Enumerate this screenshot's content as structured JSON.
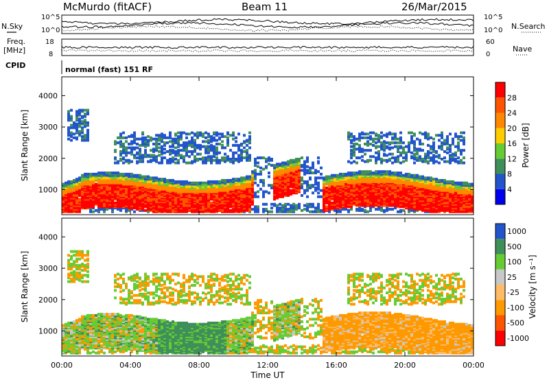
{
  "header": {
    "station": "McMurdo (fitACF)",
    "beam": "Beam 11",
    "date": "26/Mar/2015"
  },
  "top_panels": {
    "nsky_label": "N.Sky",
    "nsearch_label": "N.Search",
    "left_ticks": [
      "10^5",
      "10^0"
    ],
    "right_ticks": [
      "10^5",
      "10^0"
    ],
    "freq_label": "Freq.",
    "freq_unit": "[MHz]",
    "freq_ticks": [
      "18",
      "8"
    ],
    "nave_label": "Nave",
    "nave_ticks": [
      "60",
      "0"
    ],
    "cpid_label": "CPID",
    "cpid_text": "normal (fast) 151 RF"
  },
  "colors": {
    "power": [
      "#0000ee",
      "#2255cc",
      "#3f8f5a",
      "#66cc33",
      "#ffcc00",
      "#ff8800",
      "#ff5500",
      "#ff0000"
    ],
    "velocity": [
      "#ff0000",
      "#ff5500",
      "#ff9900",
      "#ffbb66",
      "#c8c8c8",
      "#66cc33",
      "#3f8f5a",
      "#2255cc"
    ]
  },
  "chart_data": [
    {
      "type": "heatmap",
      "name": "power_panel",
      "ylabel": "Slant Range [km]",
      "xlabel": "Time UT",
      "yticks": [
        "1000",
        "2000",
        "3000",
        "4000"
      ],
      "xticks": [
        "00:00",
        "04:00",
        "08:00",
        "12:00",
        "16:00",
        "20:00",
        "00:00"
      ],
      "colorbar": {
        "label": "Power [dB]",
        "ticks": [
          "4",
          "8",
          "12",
          "16",
          "20",
          "24",
          "28"
        ],
        "levels": [
          0,
          4,
          8,
          12,
          16,
          20,
          24,
          28,
          32
        ]
      },
      "ylim": [
        200,
        4600
      ],
      "xlim": [
        0,
        24
      ]
    },
    {
      "type": "heatmap",
      "name": "velocity_panel",
      "ylabel": "Slant Range [km]",
      "xlabel": "Time UT",
      "yticks": [
        "1000",
        "2000",
        "3000",
        "4000"
      ],
      "xticks": [
        "00:00",
        "04:00",
        "08:00",
        "12:00",
        "16:00",
        "20:00",
        "00:00"
      ],
      "colorbar": {
        "label": "Velocity [m s⁻¹]",
        "ticks": [
          "1000",
          "500",
          "100",
          "25",
          "-25",
          "-100",
          "-500",
          "-1000"
        ]
      },
      "ylim": [
        200,
        4600
      ],
      "xlim": [
        0,
        24
      ]
    }
  ],
  "axis": {
    "time_label": "Time UT"
  }
}
